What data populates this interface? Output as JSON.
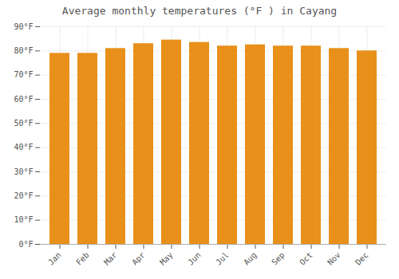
{
  "chart_data": {
    "type": "bar",
    "title": "Average monthly temperatures (°F ) in Cayang",
    "categories": [
      "Jan",
      "Feb",
      "Mar",
      "Apr",
      "May",
      "Jun",
      "Jul",
      "Aug",
      "Sep",
      "Oct",
      "Nov",
      "Dec"
    ],
    "values": [
      79,
      79,
      81,
      83,
      84.5,
      83.5,
      82,
      82.5,
      82,
      82,
      81,
      80
    ],
    "color": "#E8901A",
    "ylim": [
      0,
      90
    ],
    "yticks": [
      {
        "value": 0,
        "label": "0°F"
      },
      {
        "value": 10,
        "label": "10°F"
      },
      {
        "value": 20,
        "label": "20°F"
      },
      {
        "value": 30,
        "label": "30°F"
      },
      {
        "value": 40,
        "label": "40°F"
      },
      {
        "value": 50,
        "label": "50°F"
      },
      {
        "value": 60,
        "label": "60°F"
      },
      {
        "value": 70,
        "label": "70°F"
      },
      {
        "value": 80,
        "label": "80°F"
      },
      {
        "value": 90,
        "label": "90°F"
      }
    ],
    "grid": true
  }
}
